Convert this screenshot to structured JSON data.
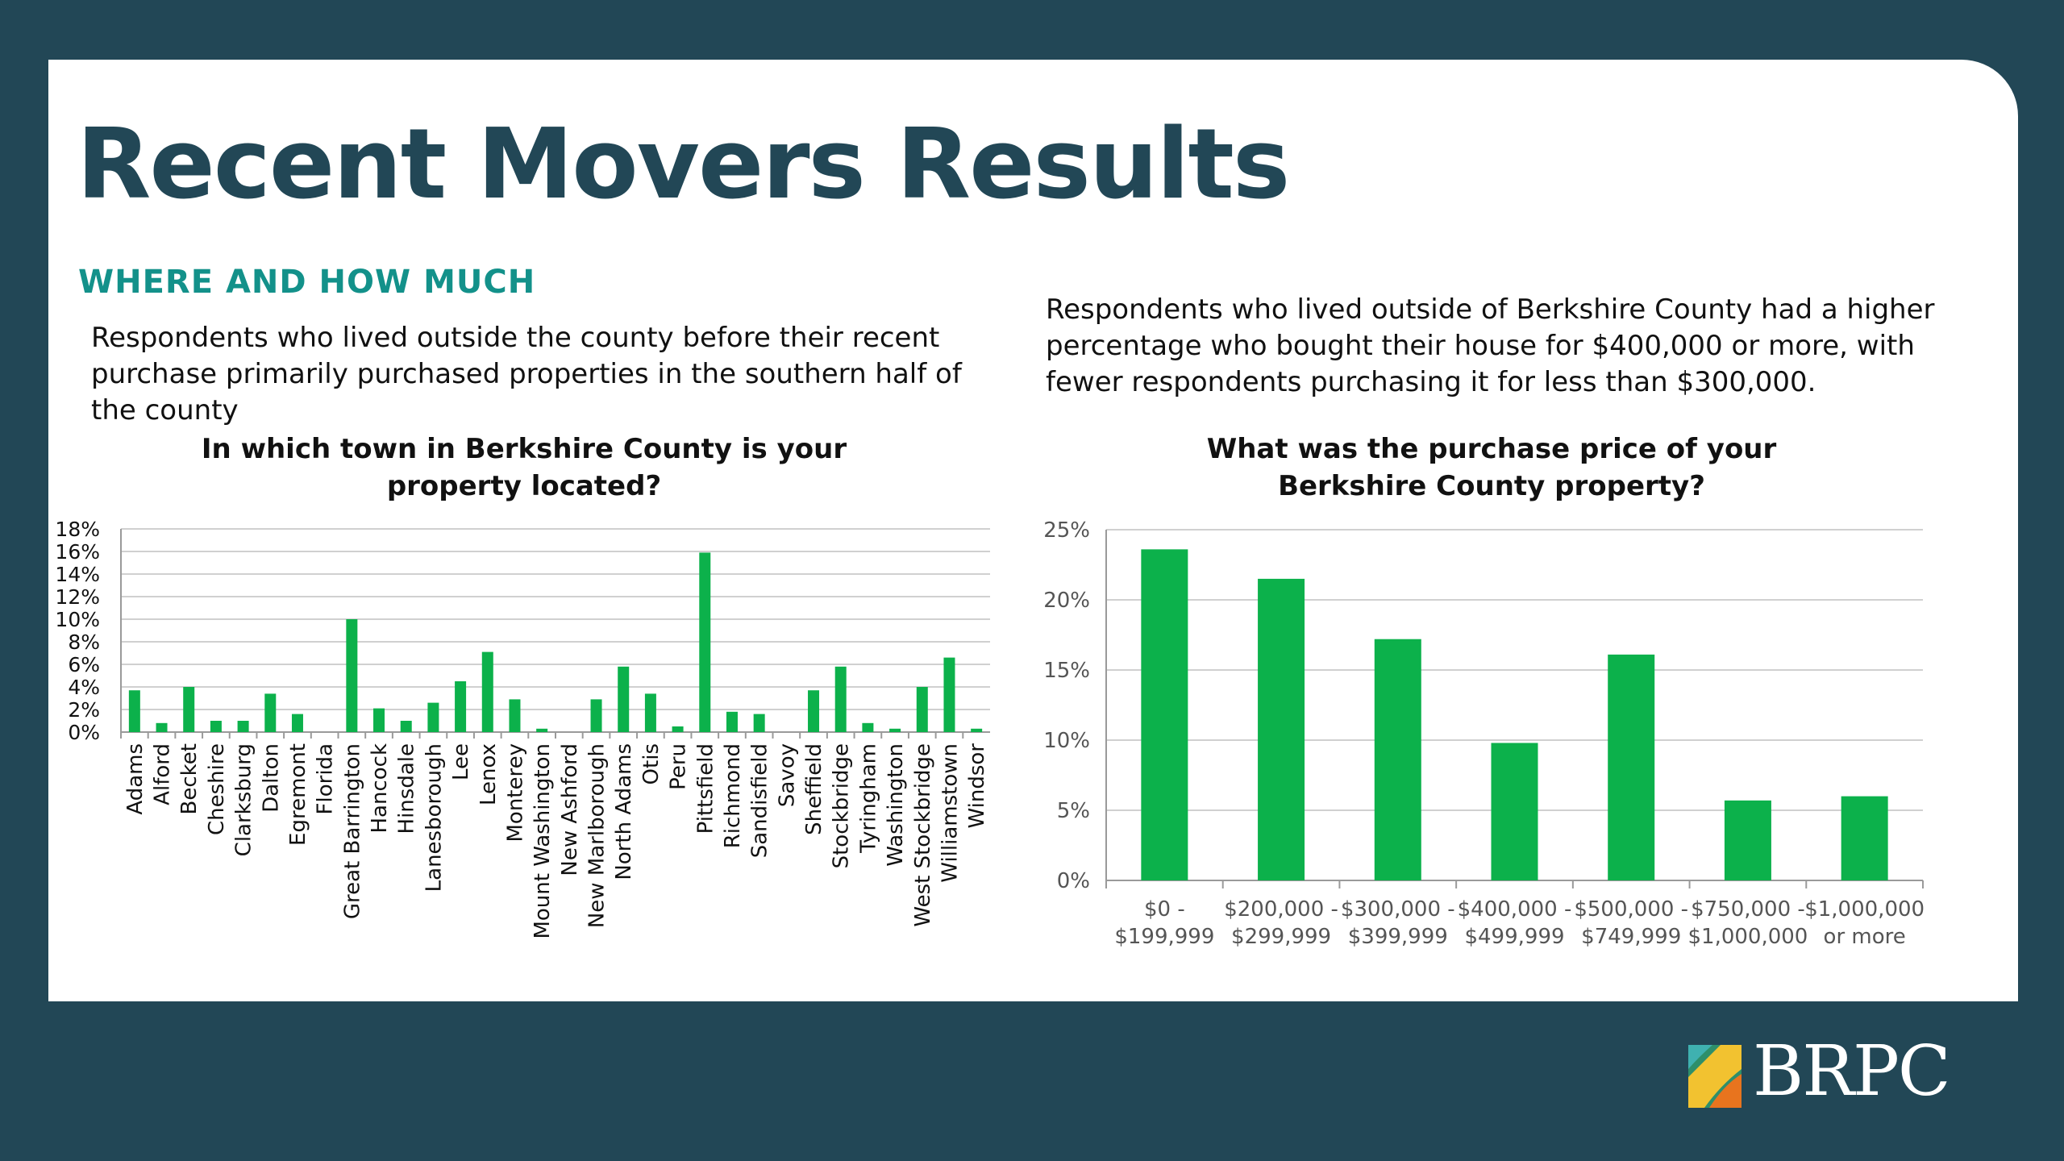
{
  "page": {
    "title": "Recent Movers Results",
    "subheading": "WHERE AND HOW MUCH",
    "left_description": "Respondents who lived outside the county before their recent purchase primarily purchased properties in the southern half of the county",
    "right_description": "Respondents who lived outside of Berkshire County had a higher percentage who bought their house for $400,000 or more, with fewer respondents purchasing it for less than $300,000.",
    "logo_text": "BRPC"
  },
  "colors": {
    "background": "#224756",
    "title": "#224756",
    "subheading": "#13918a",
    "bar": "#0cb14b",
    "grid": "#d0d0d0"
  },
  "chart_data": [
    {
      "type": "bar",
      "title": "In which town in Berkshire County is your property located?",
      "xlabel": "",
      "ylabel": "",
      "ylim": [
        0,
        18
      ],
      "yticks": [
        "0%",
        "2%",
        "4%",
        "6%",
        "8%",
        "10%",
        "12%",
        "14%",
        "16%",
        "18%"
      ],
      "grid": true,
      "categories": [
        "Adams",
        "Alford",
        "Becket",
        "Cheshire",
        "Clarksburg",
        "Dalton",
        "Egremont",
        "Florida",
        "Great Barrington",
        "Hancock",
        "Hinsdale",
        "Lanesborough",
        "Lee",
        "Lenox",
        "Monterey",
        "Mount Washington",
        "New Ashford",
        "New Marlborough",
        "North Adams",
        "Otis",
        "Peru",
        "Pittsfield",
        "Richmond",
        "Sandisfield",
        "Savoy",
        "Sheffield",
        "Stockbridge",
        "Tyringham",
        "Washington",
        "West Stockbridge",
        "Williamstown",
        "Windsor"
      ],
      "values": [
        3.7,
        0.8,
        4.0,
        1.0,
        1.0,
        3.4,
        1.6,
        0.0,
        10.0,
        2.1,
        1.0,
        2.6,
        4.5,
        7.1,
        2.9,
        0.3,
        0.0,
        2.9,
        5.8,
        3.4,
        0.5,
        15.9,
        1.8,
        1.6,
        0.0,
        3.7,
        5.8,
        0.8,
        0.3,
        4.0,
        6.6,
        0.3
      ]
    },
    {
      "type": "bar",
      "title": "What was the purchase price of your Berkshire County property?",
      "xlabel": "",
      "ylabel": "",
      "ylim": [
        0,
        25
      ],
      "yticks": [
        "0%",
        "5%",
        "10%",
        "15%",
        "20%",
        "25%"
      ],
      "grid": true,
      "categories": [
        [
          "$0 -",
          "$199,999"
        ],
        [
          "$200,000 -",
          "$299,999"
        ],
        [
          "$300,000 -",
          "$399,999"
        ],
        [
          "$400,000 -",
          "$499,999"
        ],
        [
          "$500,000 -",
          "$749,999"
        ],
        [
          "$750,000 -",
          "$1,000,000"
        ],
        [
          "$1,000,000",
          "or more"
        ]
      ],
      "values": [
        23.6,
        21.5,
        17.2,
        9.8,
        16.1,
        5.7,
        6.0
      ]
    }
  ]
}
